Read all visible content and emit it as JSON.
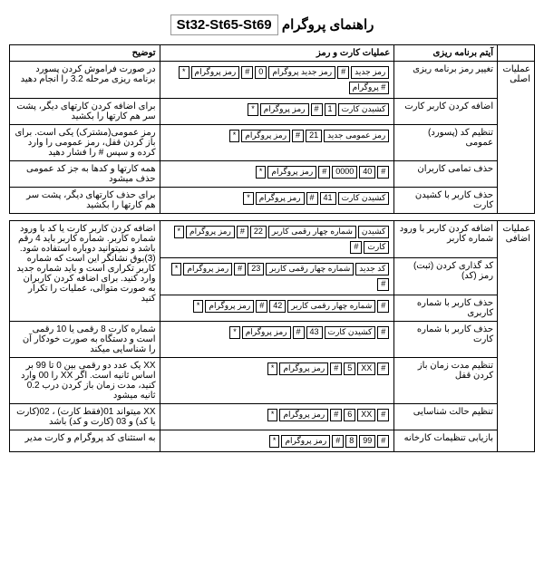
{
  "title_fa": "راهنمای پروگرام",
  "title_latin": "St32-St65-St69",
  "headers": {
    "item": "آیتم برنامه ریزی",
    "op": "عملیات کارت و رمز",
    "desc": "توضیح"
  },
  "cat_main": "عملیات اصلی",
  "cat_extra": "عملیات اضافی",
  "rows": {
    "r1": {
      "item": "تغییر رمز برنامه ریزی",
      "op": [
        [
          "رمز جدید",
          "#",
          "رمز جدید پروگرام",
          "0",
          "#",
          "رمز پروگرام",
          "*"
        ],
        [
          "# پروگرام"
        ]
      ],
      "desc": "در صورت فراموش کردن پسورد برنامه ریزی مرحله 3.2 را انجام دهید"
    },
    "r2": {
      "item": "اضافه کردن کاربر کارت",
      "op": [
        [
          "کشیدن کارت",
          "1",
          "#",
          "رمز پروگرام",
          "*"
        ]
      ],
      "desc": "برای اضافه کردن کارتهای دیگر، پشت سر هم کارتها را بکشید"
    },
    "r3": {
      "item": "تنظیم کد (پسورد) عمومی",
      "op": [
        [
          "رمز عمومی جدید",
          "21",
          "#",
          "رمز پروگرام",
          "*"
        ]
      ],
      "desc": "رمز عمومی(مشترک) یکی است. برای باز کردن قفل، رمز عمومی را وارد کرده و سپس # را فشار دهید"
    },
    "r4": {
      "item": "حذف تمامی کاربران",
      "op": [
        [
          "#",
          "40",
          "0000",
          "#",
          "رمز پروگرام",
          "*"
        ]
      ],
      "desc": "همه کارتها و کدها به جز کد عمومی حذف میشود"
    },
    "r5": {
      "item": "حذف کاربر با کشیدن کارت",
      "op": [
        [
          "کشیدن کارت",
          "41",
          "#",
          "رمز پروگرام",
          "*"
        ]
      ],
      "desc": "برای حذف کارتهای دیگر، پشت سر هم کارتها را بکشید"
    },
    "r6": {
      "item": "اضافه کردن کاربر با ورود شماره کاربر",
      "op": [
        [
          "کشیدن",
          "شماره چهار رقمی کاربر",
          "22",
          "#",
          "رمز پروگرام",
          "*"
        ],
        [
          "کارت",
          "#"
        ]
      ],
      "desc": "اضافه کردن کاربر کارت یا کد با ورود شماره کاربر. شماره کاربر باید 4 رقم باشد و نمیتوانید دوباره استفاده شود. (3)بوق نشانگر این است که شماره کاربر تکراری است و باید شماره جدید وارد کنید. برای اضافه کردن کاربران به صورت متوالی، عملیات را تکرار کنید"
    },
    "r7": {
      "item": "کد گذاری کردن (ثبت) رمز (کد)",
      "op": [
        [
          "کد جدید",
          "شماره چهار رقمی کاربر",
          "23",
          "#",
          "رمز پروگرام",
          "*"
        ],
        [
          "#"
        ]
      ],
      "desc": ""
    },
    "r8": {
      "item": "حذف کاربر با شماره کاربری",
      "op": [
        [
          "#",
          "شماره چهار رقمی کاربر",
          "42",
          "#",
          "رمز پروگرام",
          "*"
        ]
      ],
      "desc": ""
    },
    "r9": {
      "item": "حذف کاربر با شماره کارت",
      "op": [
        [
          "#",
          "کشیدن کارت",
          "43",
          "#",
          "رمز پروگرام",
          "*"
        ]
      ],
      "desc": "شماره کارت 8 رقمی یا 10 رقمی است و دستگاه به صورت خودکار آن را شناسایی میکند"
    },
    "r10": {
      "item": "تنظیم مدت زمان باز کردن قفل",
      "op": [
        [
          "#",
          "XX",
          "5",
          "#",
          "رمز پروگرام",
          "*"
        ]
      ],
      "desc": "XX یک عدد دو رقمی بین 0 تا 99 بر اساس ثانیه است. اگر XX را 00 وارد کنید، مدت زمان باز کردن درب 0.2 ثانیه میشود"
    },
    "r11": {
      "item": "تنظیم حالت شناسایی",
      "op": [
        [
          "#",
          "XX",
          "6",
          "#",
          "رمز پروگرام",
          "*"
        ]
      ],
      "desc": "XX میتواند 01(فقط کارت) ، 02(کارت یا کد) و 03 (کارت و کد) باشد"
    },
    "r12": {
      "item": "بازیابی تنظیمات کارخانه",
      "op": [
        [
          "#",
          "99",
          "8",
          "#",
          "رمز پروگرام",
          "*"
        ]
      ],
      "desc": "به استثنای کد پروگرام و کارت مدیر"
    }
  }
}
